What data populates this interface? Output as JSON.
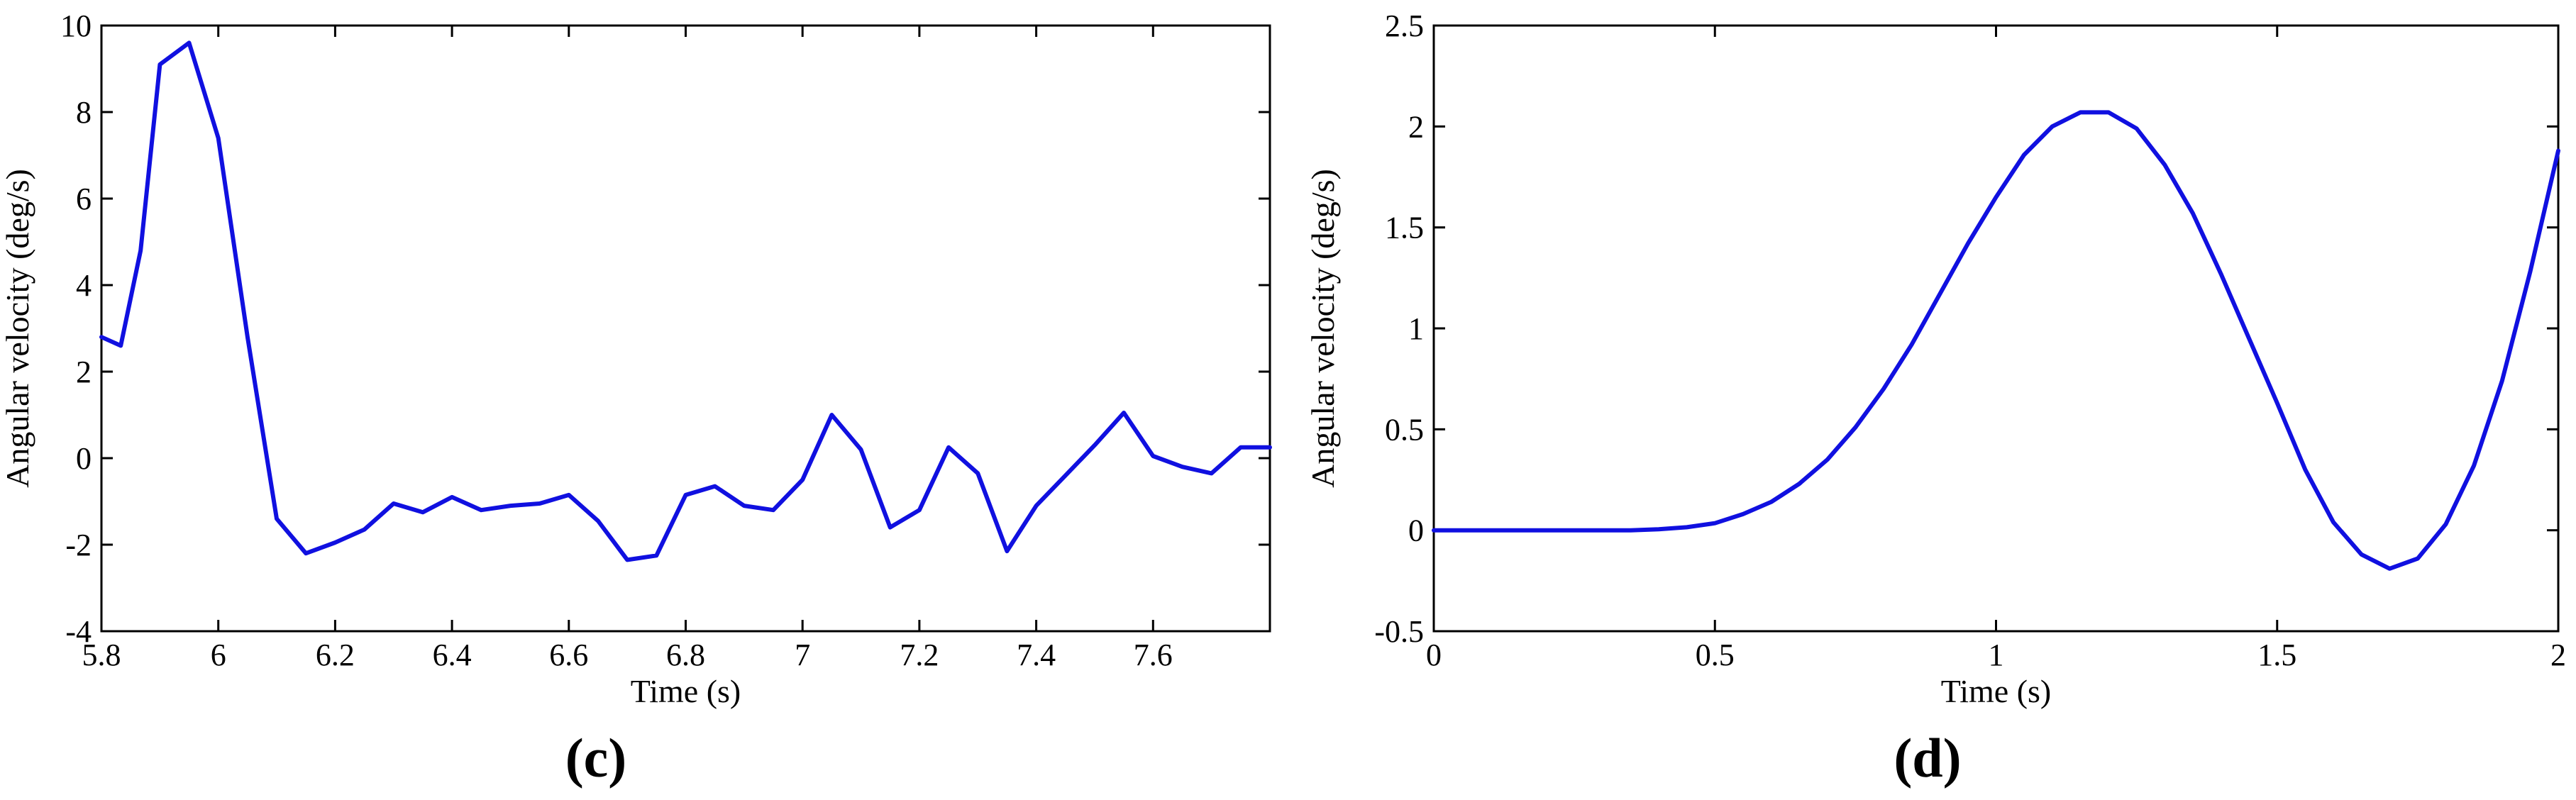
{
  "chart_data": [
    {
      "type": "line",
      "panel_label": "(c)",
      "xlabel": "Time (s)",
      "ylabel": "Angular velocity (deg/s)",
      "xlim": [
        5.8,
        7.8
      ],
      "ylim": [
        -4,
        10
      ],
      "xticks": [
        "5.8",
        "6",
        "6.2",
        "6.4",
        "6.6",
        "6.8",
        "7",
        "7.2",
        "7.4",
        "7.6"
      ],
      "yticks": [
        "-4",
        "-2",
        "0",
        "2",
        "4",
        "6",
        "8",
        "10"
      ],
      "grid": false,
      "series_color": "#1010e0",
      "x": [
        5.8,
        5.833,
        5.867,
        5.9,
        5.95,
        6.0,
        6.05,
        6.1,
        6.15,
        6.2,
        6.25,
        6.3,
        6.35,
        6.4,
        6.45,
        6.5,
        6.55,
        6.6,
        6.65,
        6.7,
        6.75,
        6.8,
        6.85,
        6.9,
        6.95,
        7.0,
        7.05,
        7.1,
        7.15,
        7.2,
        7.25,
        7.3,
        7.35,
        7.4,
        7.45,
        7.5,
        7.55,
        7.6,
        7.65,
        7.7,
        7.75,
        7.8
      ],
      "y": [
        2.8,
        2.6,
        4.8,
        9.1,
        9.6,
        7.4,
        2.8,
        -1.4,
        -2.2,
        -1.95,
        -1.65,
        -1.05,
        -1.25,
        -0.9,
        -1.2,
        -1.1,
        -1.05,
        -0.85,
        -1.45,
        -2.35,
        -2.25,
        -0.85,
        -0.65,
        -1.1,
        -1.2,
        -0.5,
        1.0,
        0.2,
        -1.6,
        -1.2,
        0.25,
        -0.35,
        -2.15,
        -1.1,
        -0.4,
        0.3,
        1.05,
        0.05,
        -0.2,
        -0.35,
        0.25,
        0.25
      ]
    },
    {
      "type": "line",
      "panel_label": "(d)",
      "xlabel": "Time (s)",
      "ylabel": "Angular velocity (deg/s)",
      "xlim": [
        0,
        2
      ],
      "ylim": [
        -0.5,
        2.5
      ],
      "xticks": [
        "0",
        "0.5",
        "1",
        "1.5",
        "2"
      ],
      "yticks": [
        "-0.5",
        "0",
        "0.5",
        "1",
        "1.5",
        "2",
        "2.5"
      ],
      "grid": false,
      "series_color": "#1010e0",
      "x": [
        0,
        0.1,
        0.2,
        0.3,
        0.35,
        0.4,
        0.45,
        0.5,
        0.55,
        0.6,
        0.65,
        0.7,
        0.75,
        0.8,
        0.85,
        0.9,
        0.95,
        1.0,
        1.05,
        1.1,
        1.15,
        1.2,
        1.25,
        1.3,
        1.35,
        1.4,
        1.45,
        1.5,
        1.55,
        1.6,
        1.65,
        1.7,
        1.75,
        1.8,
        1.85,
        1.9,
        1.95,
        2.0
      ],
      "y": [
        0,
        0,
        0,
        0,
        0,
        0.005,
        0.015,
        0.035,
        0.08,
        0.14,
        0.23,
        0.35,
        0.51,
        0.7,
        0.92,
        1.17,
        1.42,
        1.65,
        1.86,
        2.0,
        2.07,
        2.07,
        1.99,
        1.81,
        1.57,
        1.27,
        0.95,
        0.63,
        0.3,
        0.04,
        -0.12,
        -0.19,
        -0.14,
        0.03,
        0.32,
        0.74,
        1.28,
        1.88
      ]
    }
  ]
}
